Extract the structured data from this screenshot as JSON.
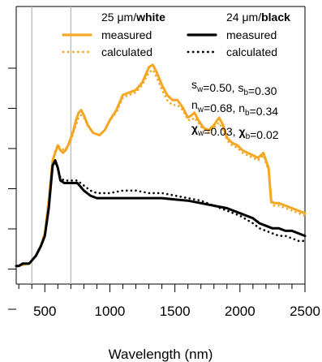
{
  "chart_data": {
    "type": "line",
    "xlabel": "Wavelength (nm)",
    "ylabel": "",
    "xlim": [
      280,
      2500
    ],
    "ylim": [
      0,
      1
    ],
    "xticks": [
      500,
      1000,
      1500,
      2000,
      2500
    ],
    "xtick_labels": [
      "500",
      "1000",
      "1500",
      "2000",
      "2500"
    ],
    "y_tick_count": 7,
    "vlines": [
      400,
      700
    ],
    "legend": {
      "groups": [
        {
          "title_plain": "25 μm/",
          "title_bold": "white",
          "color": "#F5A623",
          "entries": [
            {
              "label": "measured",
              "style": "solid"
            },
            {
              "label": "calculated",
              "style": "dotted"
            }
          ]
        },
        {
          "title_plain": "24 μm/",
          "title_bold": "black",
          "color": "#000000",
          "entries": [
            {
              "label": "measured",
              "style": "solid"
            },
            {
              "label": "calculated",
              "style": "dotted"
            }
          ]
        }
      ]
    },
    "annotations": [
      {
        "parts": [
          {
            "t": "s"
          },
          {
            "t": "w",
            "sub": true
          },
          {
            "t": "=0.50, s"
          },
          {
            "t": "b",
            "sub": true
          },
          {
            "t": "=0.30"
          }
        ]
      },
      {
        "parts": [
          {
            "t": "n"
          },
          {
            "t": "w",
            "sub": true
          },
          {
            "t": "=0.68, n"
          },
          {
            "t": "b",
            "sub": true
          },
          {
            "t": "=0.34"
          }
        ]
      },
      {
        "parts": [
          {
            "t": "χ",
            "bold": true
          },
          {
            "t": "w",
            "sub": true
          },
          {
            "t": "=0.03, "
          },
          {
            "t": "χ",
            "bold": true
          },
          {
            "t": "b",
            "sub": true
          },
          {
            "t": "=0.02"
          }
        ]
      }
    ],
    "series": [
      {
        "name": "25 μm/white measured",
        "color": "#F5A623",
        "style": "solid",
        "x": [
          280,
          380,
          430,
          470,
          500,
          530,
          560,
          580,
          600,
          620,
          640,
          660,
          680,
          700,
          720,
          740,
          760,
          780,
          800,
          830,
          870,
          920,
          960,
          1000,
          1050,
          1100,
          1150,
          1200,
          1250,
          1300,
          1330,
          1360,
          1400,
          1440,
          1480,
          1520,
          1560,
          1600,
          1630,
          1650,
          1680,
          1720,
          1760,
          1800,
          1840,
          1870,
          1900,
          1940,
          1980,
          2020,
          2060,
          2100,
          2140,
          2180,
          2220,
          2240,
          2260,
          2300,
          2350,
          2400,
          2450,
          2500
        ],
        "y": [
          0.02,
          0.03,
          0.06,
          0.1,
          0.15,
          0.28,
          0.44,
          0.47,
          0.5,
          0.48,
          0.47,
          0.48,
          0.5,
          0.53,
          0.56,
          0.6,
          0.63,
          0.64,
          0.62,
          0.58,
          0.55,
          0.54,
          0.56,
          0.6,
          0.64,
          0.7,
          0.71,
          0.72,
          0.75,
          0.81,
          0.82,
          0.79,
          0.74,
          0.7,
          0.68,
          0.68,
          0.65,
          0.61,
          0.62,
          0.63,
          0.6,
          0.57,
          0.56,
          0.58,
          0.61,
          0.58,
          0.53,
          0.51,
          0.5,
          0.48,
          0.47,
          0.46,
          0.45,
          0.47,
          0.41,
          0.28,
          0.27,
          0.27,
          0.26,
          0.25,
          0.24,
          0.23
        ]
      },
      {
        "name": "25 μm/white calculated",
        "color": "#F5A623",
        "style": "dotted",
        "x": [
          560,
          580,
          600,
          620,
          650,
          680,
          700,
          720,
          740,
          760,
          780,
          800,
          830,
          870,
          920,
          960,
          1000,
          1050,
          1100,
          1150,
          1200,
          1250,
          1300,
          1330,
          1360,
          1400,
          1440,
          1480,
          1520,
          1560,
          1600,
          1630,
          1650,
          1680,
          1720,
          1760,
          1800,
          1840,
          1870,
          1900,
          1940,
          1980,
          2020,
          2060,
          2100,
          2140,
          2180,
          2220,
          2240,
          2260,
          2300,
          2350,
          2400,
          2450,
          2500
        ],
        "y": [
          0.44,
          0.48,
          0.5,
          0.49,
          0.48,
          0.5,
          0.52,
          0.55,
          0.58,
          0.61,
          0.62,
          0.61,
          0.58,
          0.55,
          0.54,
          0.56,
          0.6,
          0.63,
          0.69,
          0.7,
          0.71,
          0.74,
          0.79,
          0.8,
          0.77,
          0.72,
          0.68,
          0.66,
          0.66,
          0.64,
          0.6,
          0.6,
          0.61,
          0.59,
          0.56,
          0.55,
          0.57,
          0.59,
          0.56,
          0.52,
          0.5,
          0.49,
          0.47,
          0.46,
          0.45,
          0.44,
          0.46,
          0.4,
          0.27,
          0.26,
          0.26,
          0.25,
          0.24,
          0.23,
          0.22
        ]
      },
      {
        "name": "24 μm/black measured",
        "color": "#000000",
        "style": "solid",
        "x": [
          280,
          300,
          330,
          380,
          430,
          470,
          500,
          530,
          560,
          580,
          600,
          620,
          650,
          700,
          750,
          800,
          850,
          900,
          1000,
          1100,
          1200,
          1300,
          1400,
          1500,
          1600,
          1700,
          1800,
          1900,
          2000,
          2100,
          2150,
          2200,
          2250,
          2300,
          2350,
          2400,
          2450,
          2500
        ],
        "y": [
          0.02,
          0.02,
          0.03,
          0.03,
          0.06,
          0.1,
          0.14,
          0.25,
          0.42,
          0.44,
          0.41,
          0.36,
          0.35,
          0.35,
          0.35,
          0.32,
          0.3,
          0.29,
          0.29,
          0.29,
          0.29,
          0.29,
          0.29,
          0.285,
          0.28,
          0.27,
          0.26,
          0.25,
          0.23,
          0.21,
          0.19,
          0.18,
          0.17,
          0.17,
          0.16,
          0.16,
          0.15,
          0.14
        ]
      },
      {
        "name": "24 μm/black calculated",
        "color": "#000000",
        "style": "dotted",
        "x": [
          560,
          580,
          600,
          620,
          650,
          700,
          750,
          800,
          850,
          900,
          1000,
          1100,
          1150,
          1200,
          1300,
          1400,
          1500,
          1600,
          1700,
          1800,
          1900,
          2000,
          2100,
          2150,
          2200,
          2250,
          2300,
          2350,
          2400,
          2450,
          2500
        ],
        "y": [
          0.42,
          0.43,
          0.41,
          0.37,
          0.36,
          0.36,
          0.36,
          0.34,
          0.32,
          0.31,
          0.31,
          0.32,
          0.32,
          0.32,
          0.31,
          0.31,
          0.3,
          0.29,
          0.28,
          0.26,
          0.24,
          0.22,
          0.19,
          0.17,
          0.16,
          0.15,
          0.14,
          0.14,
          0.13,
          0.12,
          0.12
        ]
      }
    ]
  }
}
